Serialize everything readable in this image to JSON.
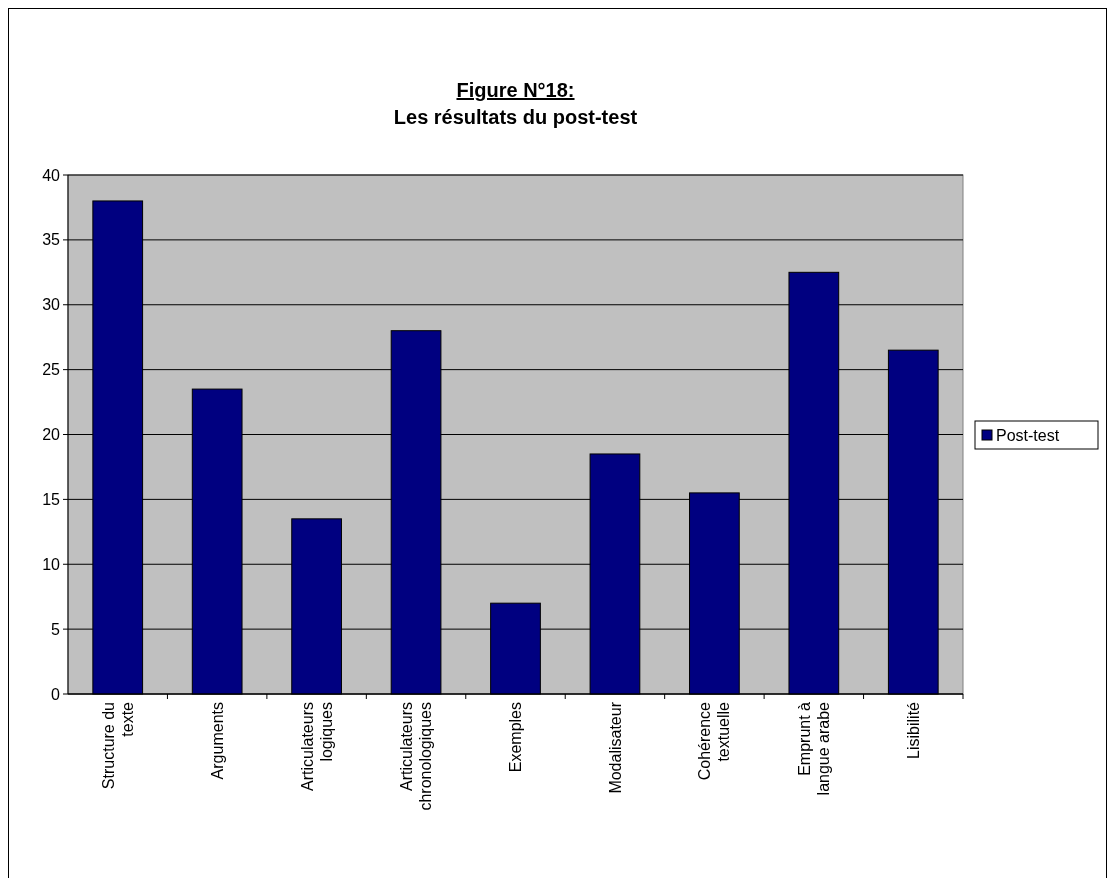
{
  "chart_data": {
    "type": "bar",
    "title": "Figure N°18: ",
    "subtitle": "Les résultats du post-test",
    "categories": [
      "Structure du texte",
      "Arguments",
      "Articulateurs logiques",
      "Articulateurs chronologiques",
      "Exemples",
      "Modalisateur",
      "Cohérence textuelle",
      "Emprunt à langue arabe",
      "Lisibilité"
    ],
    "series": [
      {
        "name": "Post-test",
        "color": "#000080",
        "values": [
          38,
          23.5,
          13.5,
          28,
          7,
          18.5,
          15.5,
          32.5,
          26.5
        ]
      }
    ],
    "ylim": [
      0,
      40
    ],
    "yticks": [
      0,
      5,
      10,
      15,
      20,
      25,
      30,
      35,
      40
    ],
    "grid": "y",
    "legend": "right"
  }
}
